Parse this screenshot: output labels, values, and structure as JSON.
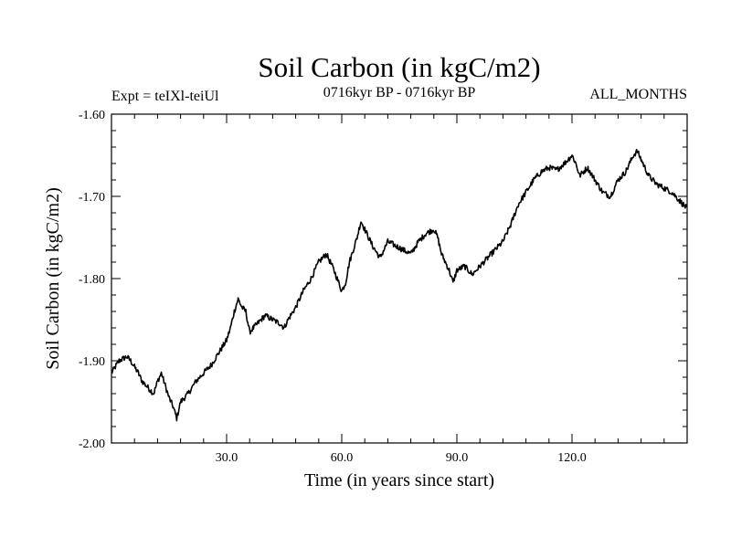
{
  "chart_data": {
    "type": "line",
    "title": "Soil Carbon (in kgC/m2)",
    "subtitle_left": "Expt = teIXl-teiUl",
    "subtitle_center": "0716kyr BP - 0716kyr BP",
    "subtitle_right": "ALL_MONTHS",
    "xlabel": "Time (in years since start)",
    "ylabel": "Soil Carbon (in kgC/m2)",
    "xlim": [
      0,
      150
    ],
    "ylim": [
      -2.0,
      -1.6
    ],
    "x_ticks": [
      30,
      60,
      90,
      120
    ],
    "x_tick_labels": [
      "30.0",
      "60.0",
      "90.0",
      "120.0"
    ],
    "y_ticks": [
      -2.0,
      -1.9,
      -1.8,
      -1.7,
      -1.6
    ],
    "y_tick_labels": [
      "-2.00",
      "-1.90",
      "-1.80",
      "-1.70",
      "-1.60"
    ],
    "grid": false,
    "series": [
      {
        "name": "Soil Carbon",
        "color": "#000000",
        "x": [
          0,
          2,
          4,
          5,
          7,
          8,
          10,
          11,
          12,
          13,
          14,
          15,
          16,
          17,
          18,
          20,
          22,
          24,
          26,
          28,
          30,
          31,
          32,
          33,
          34,
          35,
          36,
          38,
          40,
          42,
          44,
          45,
          46,
          48,
          50,
          52,
          53,
          54,
          56,
          58,
          60,
          61,
          62,
          64,
          65,
          66,
          68,
          70,
          72,
          74,
          76,
          78,
          80,
          82,
          84,
          85,
          86,
          88,
          89,
          90,
          92,
          94,
          96,
          98,
          100,
          102,
          104,
          106,
          108,
          110,
          112,
          114,
          116,
          118,
          120,
          121,
          122,
          124,
          126,
          128,
          130,
          132,
          134,
          136,
          137,
          138,
          140,
          142,
          144,
          146,
          148,
          150
        ],
        "values": [
          -1.915,
          -1.9,
          -1.895,
          -1.9,
          -1.915,
          -1.925,
          -1.935,
          -1.94,
          -1.925,
          -1.915,
          -1.93,
          -1.945,
          -1.955,
          -1.97,
          -1.95,
          -1.94,
          -1.925,
          -1.915,
          -1.905,
          -1.89,
          -1.875,
          -1.86,
          -1.84,
          -1.825,
          -1.835,
          -1.84,
          -1.865,
          -1.855,
          -1.845,
          -1.85,
          -1.855,
          -1.86,
          -1.85,
          -1.835,
          -1.815,
          -1.8,
          -1.79,
          -1.78,
          -1.77,
          -1.79,
          -1.815,
          -1.805,
          -1.78,
          -1.75,
          -1.73,
          -1.74,
          -1.76,
          -1.775,
          -1.755,
          -1.76,
          -1.765,
          -1.77,
          -1.755,
          -1.745,
          -1.74,
          -1.75,
          -1.77,
          -1.79,
          -1.805,
          -1.79,
          -1.785,
          -1.795,
          -1.785,
          -1.775,
          -1.765,
          -1.755,
          -1.735,
          -1.71,
          -1.695,
          -1.68,
          -1.67,
          -1.665,
          -1.668,
          -1.66,
          -1.65,
          -1.66,
          -1.675,
          -1.665,
          -1.68,
          -1.695,
          -1.7,
          -1.68,
          -1.67,
          -1.65,
          -1.645,
          -1.655,
          -1.675,
          -1.685,
          -1.69,
          -1.695,
          -1.705,
          -1.715
        ]
      }
    ]
  }
}
